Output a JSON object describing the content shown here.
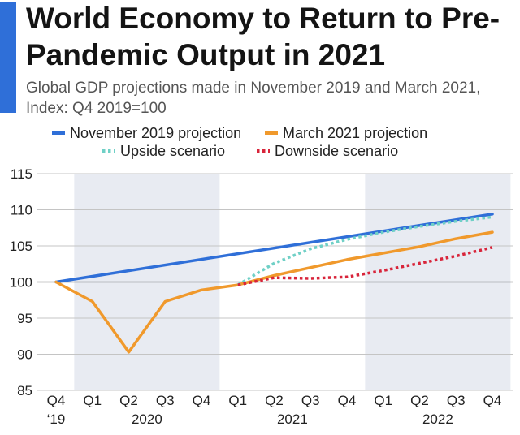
{
  "header": {
    "title": "World Economy to Return to Pre-Pandemic Output in 2021",
    "subtitle": "Global GDP projections made in November 2019 and March 2021, Index: Q4 2019=100"
  },
  "chart_data": {
    "type": "line",
    "title": "World Economy to Return to Pre-Pandemic Output in 2021",
    "subtitle": "Global GDP projections made in November 2019 and March 2021, Index: Q4 2019=100",
    "xlabel": "",
    "ylabel": "",
    "ylim": [
      85,
      115
    ],
    "yticks": [
      85,
      90,
      95,
      100,
      105,
      110,
      115
    ],
    "reference_line": 100,
    "x_labels": [
      "Q4",
      "Q1",
      "Q2",
      "Q3",
      "Q4",
      "Q1",
      "Q2",
      "Q3",
      "Q4",
      "Q1",
      "Q2",
      "Q3",
      "Q4"
    ],
    "x_year_labels": [
      {
        "label": "‘19",
        "index": 0
      },
      {
        "label": "2020",
        "index": 2.5
      },
      {
        "label": "2021",
        "index": 6.5
      },
      {
        "label": "2022",
        "index": 10.5
      }
    ],
    "shaded_periods": [
      {
        "from": 0.5,
        "to": 4.5
      },
      {
        "from": 8.5,
        "to": 12.5
      }
    ],
    "series": [
      {
        "name": "November 2019 projection",
        "color": "#2f6fd8",
        "style": "solid",
        "x": [
          0,
          12
        ],
        "values": [
          100,
          109.4
        ]
      },
      {
        "name": "March 2021 projection",
        "color": "#f0992c",
        "style": "solid",
        "x": [
          0,
          1,
          2,
          3,
          4,
          5,
          6,
          7,
          8,
          9,
          10,
          11,
          12
        ],
        "values": [
          100,
          97.3,
          90.3,
          97.3,
          98.9,
          99.6,
          100.9,
          102.0,
          103.1,
          104.0,
          104.9,
          106.0,
          106.9
        ]
      },
      {
        "name": "Upside scenario",
        "color": "#6fd0c6",
        "style": "dotted",
        "x": [
          5,
          6,
          7,
          8,
          9,
          10,
          11,
          12
        ],
        "values": [
          99.6,
          102.6,
          104.6,
          105.9,
          106.9,
          107.7,
          108.4,
          109.0
        ]
      },
      {
        "name": "Downside scenario",
        "color": "#d8243a",
        "style": "dotted",
        "x": [
          5,
          6,
          7,
          8,
          9,
          10,
          11,
          12
        ],
        "values": [
          99.6,
          100.6,
          100.5,
          100.7,
          101.6,
          102.6,
          103.6,
          104.8
        ]
      }
    ]
  }
}
